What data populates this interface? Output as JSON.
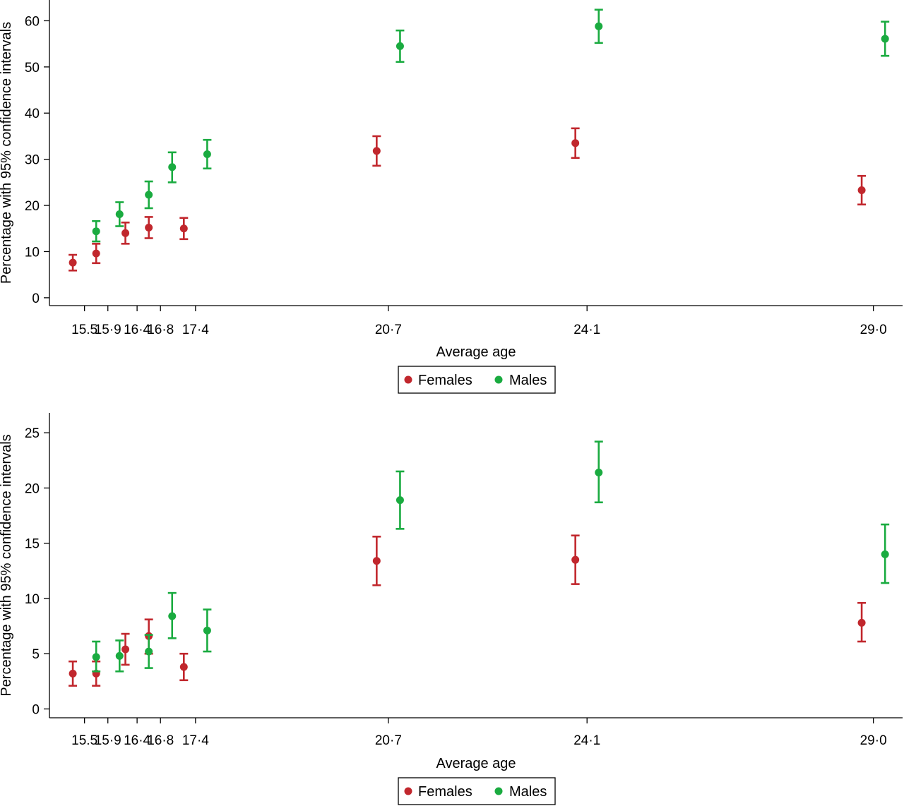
{
  "chart_data": [
    {
      "type": "scatter",
      "title": "",
      "xlabel": "Average age",
      "ylabel": "Percentage with 95% confidence intervals",
      "x_tick_labels": [
        "15.5",
        "15·9",
        "16·4",
        "16·8",
        "17·4",
        "20·7",
        "24·1",
        "29·0"
      ],
      "x_tick_values": [
        15.5,
        15.9,
        16.4,
        16.8,
        17.4,
        20.7,
        24.1,
        29.0
      ],
      "x_range": [
        14.9,
        29.5
      ],
      "yticks": [
        0,
        10,
        20,
        30,
        40,
        50,
        60
      ],
      "ylim": [
        -1.7,
        64.5
      ],
      "grid": false,
      "legend_position": "bottom-center",
      "series": [
        {
          "name": "Females",
          "color": "#c1272d",
          "x": [
            15.3,
            15.7,
            16.2,
            16.6,
            17.2,
            20.5,
            23.9,
            28.8
          ],
          "y": [
            7.6,
            9.6,
            14.0,
            15.2,
            15.0,
            31.8,
            33.5,
            23.3
          ],
          "ci_low": [
            5.9,
            7.5,
            11.7,
            12.9,
            12.7,
            28.6,
            30.3,
            20.2
          ],
          "ci_high": [
            9.3,
            11.7,
            16.3,
            17.5,
            17.3,
            35.0,
            36.7,
            26.4
          ]
        },
        {
          "name": "Males",
          "color": "#1aab40",
          "x": [
            15.7,
            16.1,
            16.6,
            17.0,
            17.6,
            20.9,
            24.3,
            29.2
          ],
          "y": [
            14.4,
            18.1,
            22.3,
            28.3,
            31.1,
            54.5,
            58.8,
            56.1
          ],
          "ci_low": [
            12.2,
            15.5,
            19.4,
            25.0,
            28.0,
            51.1,
            55.2,
            52.4
          ],
          "ci_high": [
            16.6,
            20.7,
            25.2,
            31.5,
            34.2,
            57.9,
            62.4,
            59.8
          ]
        }
      ]
    },
    {
      "type": "scatter",
      "title": "",
      "xlabel": "Average age",
      "ylabel": "Percentage with 95% confidence intervals",
      "x_tick_labels": [
        "15.5",
        "15·9",
        "16·4",
        "16·8",
        "17·4",
        "20·7",
        "24·1",
        "29·0"
      ],
      "x_tick_values": [
        15.5,
        15.9,
        16.4,
        16.8,
        17.4,
        20.7,
        24.1,
        29.0
      ],
      "x_range": [
        14.9,
        29.5
      ],
      "yticks": [
        0,
        5,
        10,
        15,
        20,
        25
      ],
      "ylim": [
        -0.8,
        26.8
      ],
      "grid": false,
      "legend_position": "bottom-center",
      "series": [
        {
          "name": "Females",
          "color": "#c1272d",
          "x": [
            15.3,
            15.7,
            16.2,
            16.6,
            17.2,
            20.5,
            23.9,
            28.8
          ],
          "y": [
            3.2,
            3.2,
            5.4,
            6.6,
            3.8,
            13.4,
            13.5,
            7.8
          ],
          "ci_low": [
            2.1,
            2.1,
            4.0,
            5.0,
            2.6,
            11.2,
            11.3,
            6.1
          ],
          "ci_high": [
            4.3,
            4.3,
            6.8,
            8.1,
            5.0,
            15.6,
            15.7,
            9.6
          ]
        },
        {
          "name": "Males",
          "color": "#1aab40",
          "x": [
            15.7,
            16.1,
            16.6,
            17.0,
            17.6,
            20.9,
            24.3,
            29.2
          ],
          "y": [
            4.7,
            4.8,
            5.2,
            8.4,
            7.1,
            18.9,
            21.4,
            14.0
          ],
          "ci_low": [
            3.4,
            3.4,
            3.7,
            6.4,
            5.2,
            16.3,
            18.7,
            11.4
          ],
          "ci_high": [
            6.1,
            6.2,
            6.7,
            10.5,
            9.0,
            21.5,
            24.2,
            16.7
          ]
        }
      ]
    }
  ]
}
